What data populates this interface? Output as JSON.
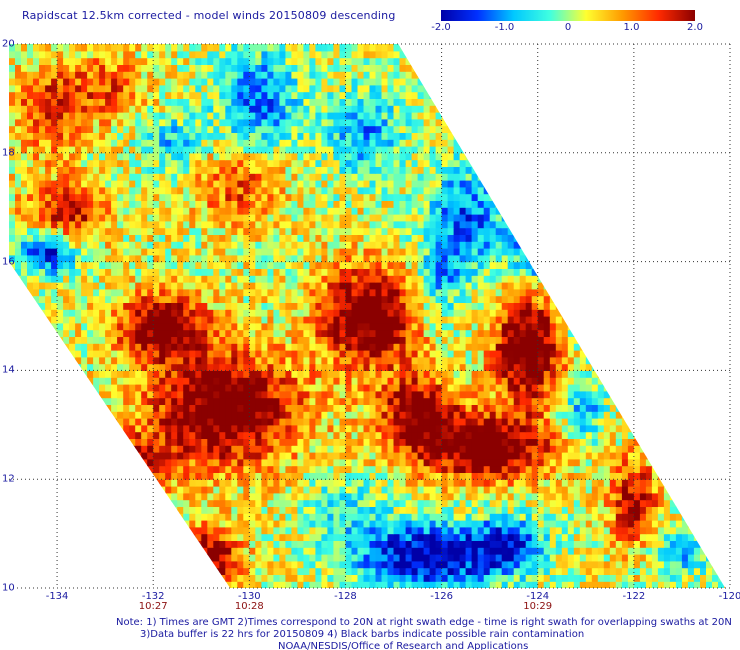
{
  "title": "Rapidscat 12.5km corrected - model winds 20150809 descending",
  "colorbar": {
    "labels": [
      "-2.0",
      "-1.0",
      "0",
      "1.0",
      "2.0"
    ],
    "values": [
      -2.0,
      -1.0,
      0,
      1.0,
      2.0
    ],
    "range": [
      -2.0,
      2.0
    ],
    "colors": [
      "#0000a8",
      "#0030ff",
      "#00c8ff",
      "#40ffe0",
      "#ffff30",
      "#ff9a00",
      "#ff2a00",
      "#8b0000"
    ]
  },
  "map": {
    "lon_range": [
      -135,
      -120
    ],
    "lat_range": [
      10,
      20
    ],
    "grid": "dotted",
    "lat_ticks": [
      {
        "label": "20",
        "value": 20
      },
      {
        "label": "18",
        "value": 18
      },
      {
        "label": "16",
        "value": 16
      },
      {
        "label": "14",
        "value": 14
      },
      {
        "label": "12",
        "value": 12
      },
      {
        "label": "10",
        "value": 10
      }
    ],
    "lon_ticks": [
      {
        "label": "-134",
        "value": -134
      },
      {
        "label": "-132",
        "value": -132
      },
      {
        "label": "-130",
        "value": -130
      },
      {
        "label": "-128",
        "value": -128
      },
      {
        "label": "-126",
        "value": -126
      },
      {
        "label": "-124",
        "value": -124
      },
      {
        "label": "-122",
        "value": -122
      },
      {
        "label": "-120",
        "value": -120
      }
    ],
    "time_labels": [
      {
        "label": "10:27",
        "lon": -132
      },
      {
        "label": "10:28",
        "lon": -130
      },
      {
        "label": "10:29",
        "lon": -124
      }
    ],
    "swath_corners": [
      {
        "lon": -135,
        "lat": 20
      },
      {
        "lon": -126.9,
        "lat": 20
      },
      {
        "lon": -120.1,
        "lat": 10
      },
      {
        "lon": -130.4,
        "lat": 10
      },
      {
        "lon": -135,
        "lat": 16
      }
    ]
  },
  "notes": [
    "Note: 1) Times are GMT 2)Times correspond to 20N at right swath edge - time is right swath for overlapping swaths at 20N",
    "3)Data buffer is 22 hrs for 20150809 4) Black barbs indicate possible rain contamination",
    "NOAA/NESDIS/Office of Research and Applications"
  ]
}
